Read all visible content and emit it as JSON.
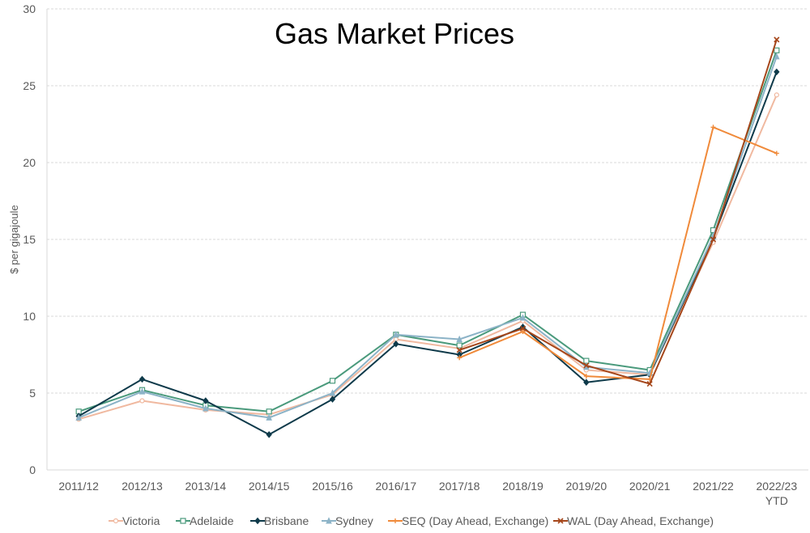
{
  "chart_data": {
    "type": "line",
    "title": "Gas Market Prices",
    "ylabel": "$ per gigajoule",
    "xlabel": "",
    "ylim": [
      0,
      30
    ],
    "yticks": [
      0,
      5,
      10,
      15,
      20,
      25,
      30
    ],
    "grid": "horizontal",
    "legend_position": "bottom",
    "categories": [
      "2011/12",
      "2012/13",
      "2013/14",
      "2014/15",
      "2015/16",
      "2016/17",
      "2017/18",
      "2018/19",
      "2019/20",
      "2020/21",
      "2021/22",
      "2022/23 YTD"
    ],
    "category_labels": [
      [
        "2011/12"
      ],
      [
        "2012/13"
      ],
      [
        "2013/14"
      ],
      [
        "2014/15"
      ],
      [
        "2015/16"
      ],
      [
        "2016/17"
      ],
      [
        "2017/18"
      ],
      [
        "2018/19"
      ],
      [
        "2019/20"
      ],
      [
        "2020/21"
      ],
      [
        "2021/22"
      ],
      [
        "2022/23",
        "YTD"
      ]
    ],
    "series": [
      {
        "name": "Victoria",
        "color": "#f0b9a0",
        "marker": "circle",
        "values": [
          3.3,
          4.5,
          3.9,
          3.6,
          4.9,
          8.5,
          7.9,
          9.7,
          6.5,
          6.2,
          14.8,
          24.4
        ]
      },
      {
        "name": "Adelaide",
        "color": "#4a9a7c",
        "marker": "square",
        "values": [
          3.8,
          5.2,
          4.2,
          3.8,
          5.8,
          8.8,
          8.1,
          10.1,
          7.1,
          6.5,
          15.6,
          27.3
        ]
      },
      {
        "name": "Brisbane",
        "color": "#0e3a4a",
        "marker": "diamond",
        "values": [
          3.5,
          5.9,
          4.5,
          2.3,
          4.6,
          8.2,
          7.5,
          9.3,
          5.7,
          6.2,
          15.1,
          25.9
        ]
      },
      {
        "name": "Sydney",
        "color": "#8cb3c7",
        "marker": "triangle",
        "values": [
          3.4,
          5.1,
          4.0,
          3.4,
          5.0,
          8.8,
          8.5,
          9.9,
          6.7,
          6.3,
          15.2,
          26.9
        ]
      },
      {
        "name": "SEQ (Day Ahead, Exchange)",
        "color": "#f08a3a",
        "marker": "plus",
        "values": [
          null,
          null,
          null,
          null,
          null,
          null,
          7.3,
          9.0,
          6.1,
          5.9,
          22.3,
          20.6
        ]
      },
      {
        "name": "WAL (Day Ahead, Exchange)",
        "color": "#a5461a",
        "marker": "cross",
        "values": [
          null,
          null,
          null,
          null,
          null,
          null,
          7.8,
          9.2,
          6.8,
          5.6,
          15.0,
          28.0
        ]
      }
    ]
  }
}
